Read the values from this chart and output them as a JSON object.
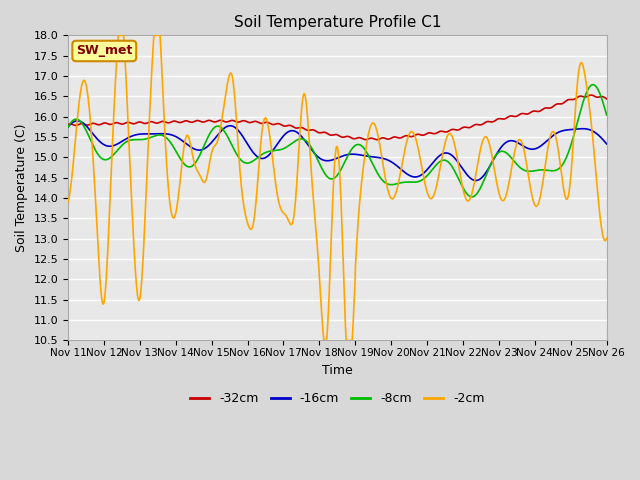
{
  "title": "Soil Temperature Profile C1",
  "xlabel": "Time",
  "ylabel": "Soil Temperature (C)",
  "ylim": [
    10.5,
    18.0
  ],
  "yticks": [
    10.5,
    11.0,
    11.5,
    12.0,
    12.5,
    13.0,
    13.5,
    14.0,
    14.5,
    15.0,
    15.5,
    16.0,
    16.5,
    17.0,
    17.5,
    18.0
  ],
  "x_labels": [
    "Nov 11",
    "Nov 12",
    "Nov 13",
    "Nov 14",
    "Nov 15",
    "Nov 16",
    "Nov 17",
    "Nov 18",
    "Nov 19",
    "Nov 20",
    "Nov 21",
    "Nov 22",
    "Nov 23",
    "Nov 24",
    "Nov 25",
    "Nov 26"
  ],
  "colors": {
    "-32cm": "#cc0000",
    "-16cm": "#0000cc",
    "-8cm": "#00bb00",
    "-2cm": "#ffa500"
  },
  "legend_label": "SW_met",
  "legend_box_facecolor": "#ffff99",
  "legend_box_edgecolor": "#cc8800",
  "fig_facecolor": "#d8d8d8",
  "ax_facecolor": "#e8e8e8",
  "grid_color": "#ffffff"
}
